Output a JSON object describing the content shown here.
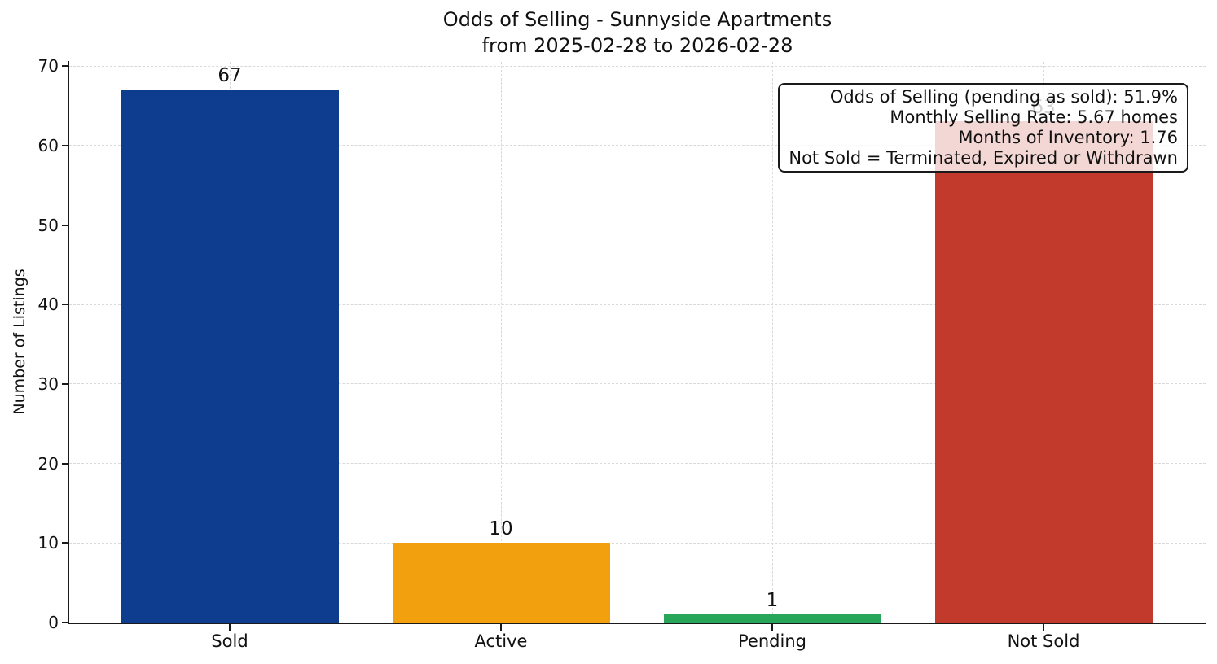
{
  "chart_data": {
    "type": "bar",
    "title": "Odds of Selling - Sunnyside Apartments",
    "subtitle": "from 2025-02-28 to 2026-02-28",
    "xlabel": "",
    "ylabel": "Number of Listings",
    "categories": [
      "Sold",
      "Active",
      "Pending",
      "Not Sold"
    ],
    "values": [
      67,
      10,
      1,
      63
    ],
    "bar_colors": [
      "#0e3d90",
      "#f2a00d",
      "#27a65a",
      "#c13a2b"
    ],
    "yticks": [
      0,
      10,
      20,
      30,
      40,
      50,
      60,
      70
    ],
    "ylim": [
      0,
      70.6
    ],
    "grid": {
      "visible": true,
      "style": "dashed",
      "axes": "both",
      "color": "#d9d9d9"
    },
    "legend_position": "none",
    "annotation": {
      "position": "top-right",
      "background": "#ffffff",
      "border_color": "#1a1a1a",
      "lines": [
        "Odds of Selling (pending as sold): 51.9%",
        "Monthly Selling Rate: 5.67 homes",
        "Months of Inventory: 1.76",
        "Not Sold = Terminated, Expired or Withdrawn"
      ]
    },
    "colors": {
      "text": "#111111",
      "spine": "#1a1a1a"
    }
  }
}
